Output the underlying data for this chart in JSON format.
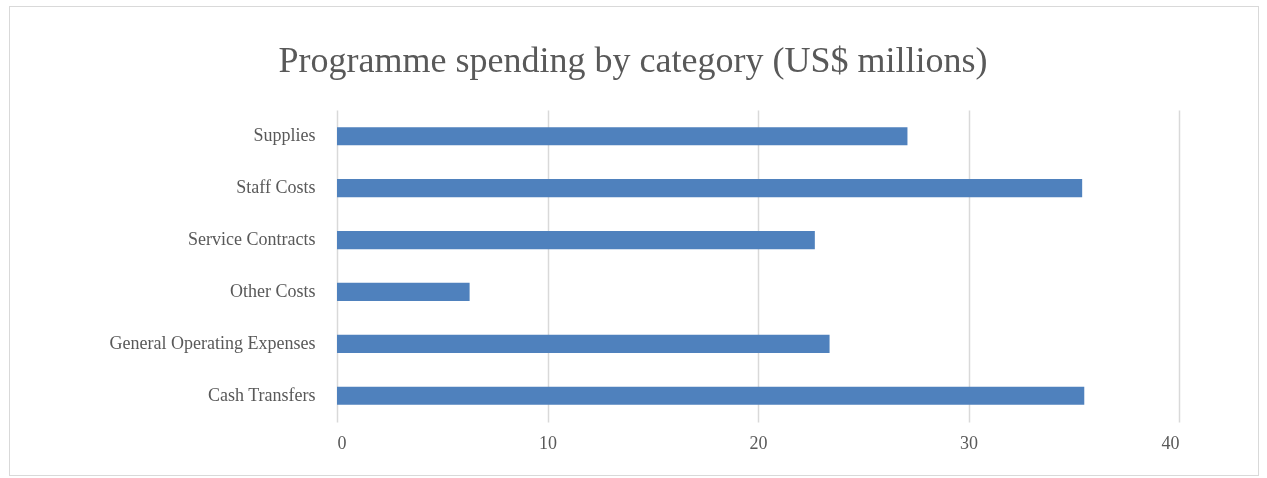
{
  "chart_data": {
    "type": "bar",
    "orientation": "horizontal",
    "title": "Programme spending by category (US$ millions)",
    "categories": [
      "Supplies",
      "Staff Costs",
      "Service Contracts",
      "Other Costs",
      "General Operating Expenses",
      "Cash Transfers"
    ],
    "values": [
      27.1,
      35.4,
      22.7,
      6.3,
      23.4,
      35.5
    ],
    "color": "#4f81bd",
    "xlim": [
      0,
      40
    ],
    "xticks": [
      0,
      10,
      20,
      30,
      40
    ],
    "grid": "x"
  }
}
